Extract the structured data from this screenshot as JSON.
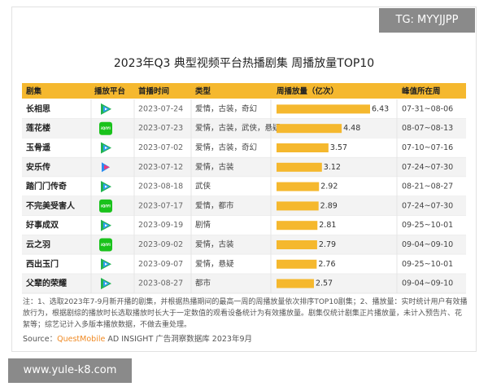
{
  "watermark": "TG: MYYJJPP",
  "title": "2023年Q3 典型视频平台热播剧集 周播放量TOP10",
  "table": {
    "columns": [
      "剧集",
      "播放平台",
      "首播时间",
      "类型",
      "周播放量（亿次）",
      "峰值所在周"
    ],
    "bar_color": "#f5b82e",
    "rows": [
      {
        "name": "长相思",
        "icon": "tencent",
        "date": "2023-07-24",
        "genre": "爱情，古装，奇幻",
        "plays": 6.43,
        "peak": "07-31~08-06"
      },
      {
        "name": "莲花楼",
        "icon": "iQIYI",
        "date": "2023-07-23",
        "genre": "爱情，古装，武侠，悬疑",
        "plays": 4.48,
        "peak": "08-07~08-13"
      },
      {
        "name": "玉骨遥",
        "icon": "tencent",
        "date": "2023-07-02",
        "genre": "爱情，古装，奇幻",
        "plays": 3.57,
        "peak": "07-10~07-16"
      },
      {
        "name": "安乐传",
        "icon": "youku",
        "date": "2023-07-12",
        "genre": "爱情，古装",
        "plays": 3.12,
        "peak": "07-24~07-30"
      },
      {
        "name": "踏门门传奇",
        "icon": "tencent",
        "date": "2023-08-18",
        "genre": "武侠",
        "plays": 2.92,
        "peak": "08-21~08-27"
      },
      {
        "name": "不完美受害人",
        "icon": "iQIYI",
        "date": "2023-07-17",
        "genre": "爱情，都市",
        "plays": 2.89,
        "peak": "07-24~07-30"
      },
      {
        "name": "好事成双",
        "icon": "tencent",
        "date": "2023-09-19",
        "genre": "剧情",
        "plays": 2.81,
        "peak": "09-25~10-01"
      },
      {
        "name": "云之羽",
        "icon": "iQIYI",
        "date": "2023-09-02",
        "genre": "爱情，古装",
        "plays": 2.79,
        "peak": "09-04~09-10"
      },
      {
        "name": "西出玉门",
        "icon": "tencent",
        "date": "2023-09-07",
        "genre": "爱情，悬疑",
        "plays": 2.76,
        "peak": "09-25~10-01"
      },
      {
        "name": "父辈的荣耀",
        "icon": "tencent",
        "date": "2023-08-27",
        "genre": "都市",
        "plays": 2.57,
        "peak": "09-04~09-10"
      }
    ]
  },
  "note": "注：1、选取2023年7-9月新开播的剧集，并根据热播期间的最高一周的周播放量依次排序TOP10剧集；2、播放量：实时统计用户有效播放行为，根据剧综的播放时长选取播放时长大于一定数值的观看设备统计为有效播放量。剧集仅统计剧集正片播放量，未计入预告片、花絮等；综艺记计入多版本播放数据，不做去重处理。",
  "source": {
    "label": "Source：",
    "brand": "QuestMobile",
    "text": "AD INSIGHT 广告洞察数据库 2023年9月"
  },
  "footer": "www.yule-k8.com"
}
